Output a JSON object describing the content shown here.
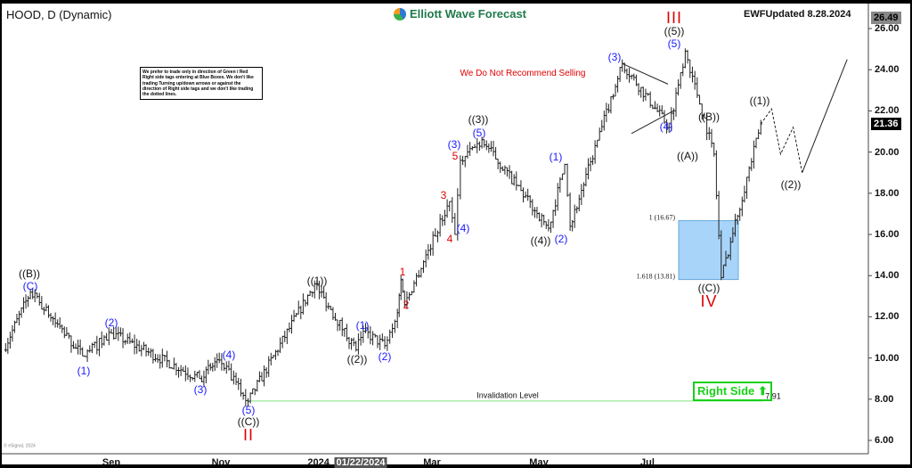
{
  "header": {
    "symbol_title": "HOOD, D (Dynamic)",
    "brand": "Elliott Wave Forecast",
    "updated": "EWFUpdated 8.28.2024"
  },
  "note": "We prefer to trade only in direction of Green / Red Right side tags entering at Blue Boxes. We don't like trading Turning up/down arrows or against the direction of Right side tags and we don't like trading the dotted lines.",
  "annotations": {
    "no_sell": "We Do Not Recommend Selling",
    "invalidation": "Invalidation Level",
    "invalidation_value": "7.91",
    "right_side": "Right Side",
    "fib_1": "1 (16.67)",
    "fib_1618": "1.618 (13.81)",
    "watermark": "© eSignal, 2024"
  },
  "colors": {
    "bars": "#222222",
    "blue_box": "#a8d4fa",
    "invalidation": "#7ee07e",
    "right_side": "#19d119",
    "wave_red": "#e00000",
    "wave_blue": "#1a1aff"
  },
  "waves": [
    "((B))",
    "(C)",
    "(1)",
    "(2)",
    "(3)",
    "(4)",
    "(5)",
    "((C))",
    "II",
    "((1))",
    "((2))",
    "(1)",
    "(2)",
    "1",
    "2",
    "3",
    "4",
    "(4)",
    "5",
    "(3)",
    "(5)",
    "((3))",
    "((4))",
    "(2)",
    "(1)",
    "(3)",
    "(4)",
    "(5)",
    "((5))",
    "III",
    "((B))",
    "((A))",
    "((C))",
    "IV",
    "((1))",
    "((2))"
  ],
  "chart_data": {
    "type": "ohlc-bar",
    "title": "HOOD, D (Dynamic)",
    "ylim": [
      5.5,
      26.8
    ],
    "y_ticks": [
      "26.00",
      "24.00",
      "22.00",
      "20.00",
      "18.00",
      "16.00",
      "14.00",
      "12.00",
      "10.00",
      "8.00",
      "6.00"
    ],
    "x_ticks": [
      "Sep",
      "Nov",
      "2024",
      "01/22/2024",
      "Mar",
      "May",
      "Jul"
    ],
    "price_high_label": "26.49",
    "last_price_label": "21.36",
    "pivots": [
      [
        "2023-07-03",
        10.4
      ],
      [
        "2023-07-18",
        13.2
      ],
      [
        "2023-08-16",
        10.1
      ],
      [
        "2023-09-01",
        11.2
      ],
      [
        "2023-10-20",
        9.0
      ],
      [
        "2023-10-31",
        9.9
      ],
      [
        "2023-11-16",
        7.9
      ],
      [
        "2023-12-23",
        13.6
      ],
      [
        "2024-01-15",
        10.4
      ],
      [
        "2024-01-19",
        11.3
      ],
      [
        "2024-01-31",
        10.6
      ],
      [
        "2024-02-07",
        12.2
      ],
      [
        "2024-02-09",
        13.8
      ],
      [
        "2024-02-11",
        12.6
      ],
      [
        "2024-03-07",
        17.6
      ],
      [
        "2024-03-10",
        16.0
      ],
      [
        "2024-03-13",
        19.6
      ],
      [
        "2024-03-25",
        20.6
      ],
      [
        "2024-05-01",
        16.3
      ],
      [
        "2024-05-10",
        19.4
      ],
      [
        "2024-05-13",
        16.4
      ],
      [
        "2024-06-11",
        24.3
      ],
      [
        "2024-07-07",
        21.2
      ],
      [
        "2024-07-16",
        24.9
      ],
      [
        "2024-08-01",
        19.9
      ],
      [
        "2024-08-05",
        13.9
      ],
      [
        "2024-08-27",
        21.36
      ]
    ],
    "projection": [
      [
        "2024-08-27",
        21.36
      ],
      [
        "2024-09-02",
        22.1
      ],
      [
        "2024-09-07",
        19.9
      ],
      [
        "2024-09-14",
        21.2
      ],
      [
        "2024-09-19",
        19.0
      ],
      [
        "2024-10-14",
        24.5
      ]
    ],
    "blue_box": [
      13.81,
      16.67
    ],
    "invalidation": 7.91
  }
}
